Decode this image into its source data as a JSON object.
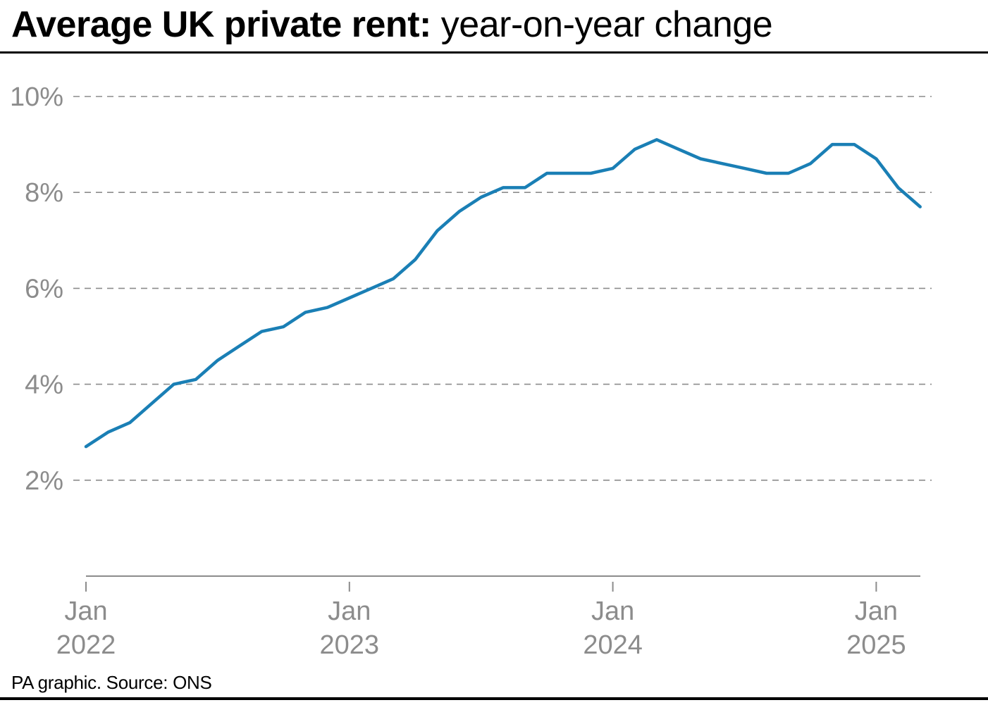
{
  "header": {
    "title_bold": "Average UK private rent:",
    "title_regular": "year-on-year change"
  },
  "footer": {
    "credit": "PA graphic. Source: ONS"
  },
  "chart_data": {
    "type": "line",
    "title": "Average UK private rent: year-on-year change",
    "xlabel": "",
    "ylabel": "",
    "ylim": [
      0,
      10
    ],
    "y_ticks": [
      {
        "value": 10,
        "label": "10%"
      },
      {
        "value": 8,
        "label": "8%"
      },
      {
        "value": 6,
        "label": "6%"
      },
      {
        "value": 4,
        "label": "4%"
      },
      {
        "value": 2,
        "label": "2%"
      }
    ],
    "x_ticks": [
      {
        "x": "2022-01",
        "line1": "Jan",
        "line2": "2022"
      },
      {
        "x": "2023-01",
        "line1": "Jan",
        "line2": "2023"
      },
      {
        "x": "2024-01",
        "line1": "Jan",
        "line2": "2024"
      },
      {
        "x": "2025-01",
        "line1": "Jan",
        "line2": "2025"
      }
    ],
    "grid": true,
    "line_color": "#1a7fb5",
    "series": [
      {
        "x": [
          "2022-01",
          "2022-02",
          "2022-03",
          "2022-04",
          "2022-05",
          "2022-06",
          "2022-07",
          "2022-08",
          "2022-09",
          "2022-10",
          "2022-11",
          "2022-12",
          "2023-01",
          "2023-02",
          "2023-03",
          "2023-04",
          "2023-05",
          "2023-06",
          "2023-07",
          "2023-08",
          "2023-09",
          "2023-10",
          "2023-11",
          "2023-12",
          "2024-01",
          "2024-02",
          "2024-03",
          "2024-04",
          "2024-05",
          "2024-06",
          "2024-07",
          "2024-08",
          "2024-09",
          "2024-10",
          "2024-11",
          "2024-12",
          "2025-01",
          "2025-02",
          "2025-03"
        ],
        "values": [
          2.7,
          3.0,
          3.2,
          3.6,
          4.0,
          4.1,
          4.5,
          4.8,
          5.1,
          5.2,
          5.5,
          5.6,
          5.8,
          6.0,
          6.2,
          6.6,
          7.2,
          7.6,
          7.9,
          8.1,
          8.1,
          8.4,
          8.4,
          8.4,
          8.5,
          8.9,
          9.1,
          8.9,
          8.7,
          8.6,
          8.5,
          8.4,
          8.4,
          8.6,
          9.0,
          9.0,
          8.7,
          8.1,
          7.7
        ]
      }
    ]
  }
}
